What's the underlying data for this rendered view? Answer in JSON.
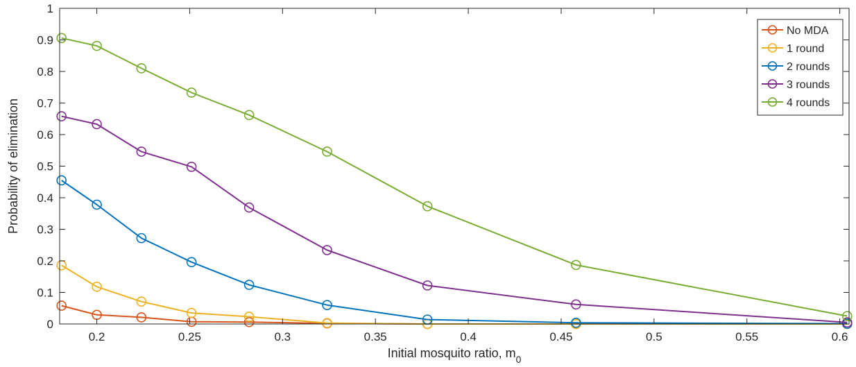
{
  "chart_data": {
    "type": "line",
    "title": "",
    "xlabel": "Initial mosquito ratio, m",
    "xlabel_subscript": "0",
    "ylabel": "Probability of elimination",
    "xlim": [
      0.18,
      0.605
    ],
    "ylim": [
      0,
      1
    ],
    "xticks": [
      0.2,
      0.25,
      0.3,
      0.35,
      0.4,
      0.45,
      0.5,
      0.55,
      0.6
    ],
    "xtick_labels": [
      "0.2",
      "0.25",
      "0.3",
      "0.35",
      "0.4",
      "0.45",
      "0.5",
      "0.55",
      "0.6"
    ],
    "yticks": [
      0,
      0.1,
      0.2,
      0.3,
      0.4,
      0.5,
      0.6,
      0.7,
      0.8,
      0.9,
      1
    ],
    "ytick_labels": [
      "0",
      "0.1",
      "0.2",
      "0.3",
      "0.4",
      "0.5",
      "0.6",
      "0.7",
      "0.8",
      "0.9",
      "1"
    ],
    "grid": false,
    "legend_position": "top-right",
    "marker": "circle",
    "x": [
      0.181,
      0.2,
      0.224,
      0.251,
      0.282,
      0.324,
      0.378,
      0.458,
      0.604
    ],
    "series": [
      {
        "name": "No MDA",
        "color": "#D95319",
        "values": [
          0.058,
          0.029,
          0.021,
          0.007,
          0.006,
          0.002,
          0.0,
          0.0,
          0.0
        ]
      },
      {
        "name": "1 round",
        "color": "#EDB120",
        "values": [
          0.186,
          0.118,
          0.071,
          0.035,
          0.023,
          0.003,
          0.0,
          0.0,
          0.0
        ]
      },
      {
        "name": "2 rounds",
        "color": "#0072BD",
        "values": [
          0.455,
          0.378,
          0.272,
          0.196,
          0.124,
          0.06,
          0.014,
          0.004,
          0.001
        ]
      },
      {
        "name": "3 rounds",
        "color": "#7E2F8E",
        "values": [
          0.658,
          0.633,
          0.546,
          0.498,
          0.369,
          0.234,
          0.122,
          0.062,
          0.005
        ]
      },
      {
        "name": "4 rounds",
        "color": "#77AC30",
        "values": [
          0.906,
          0.881,
          0.81,
          0.733,
          0.662,
          0.546,
          0.373,
          0.187,
          0.025
        ]
      }
    ]
  }
}
